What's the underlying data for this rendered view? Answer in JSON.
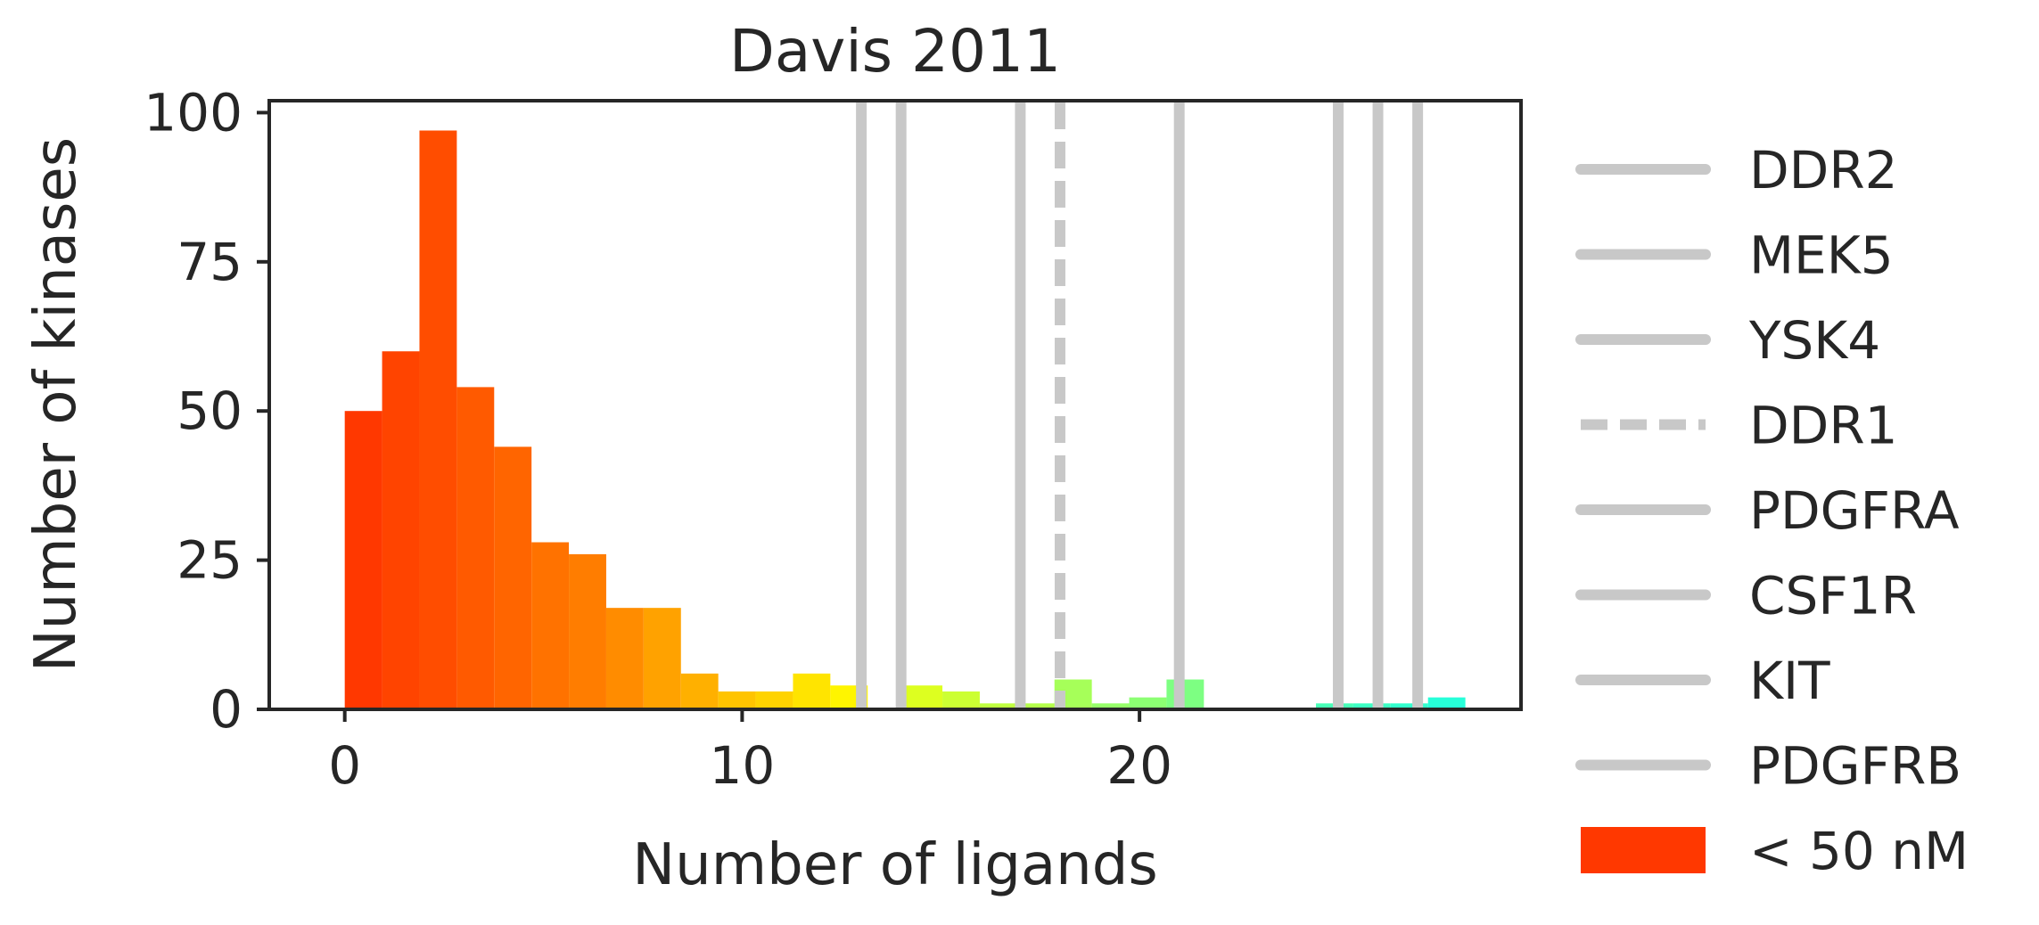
{
  "chart_data": {
    "type": "bar",
    "title": "Davis 2011",
    "xlabel": "Number of ligands",
    "ylabel": "Number of kinases",
    "xlim": [
      -1.9,
      29.6
    ],
    "ylim": [
      0,
      102
    ],
    "xticks": [
      0,
      10,
      20
    ],
    "yticks": [
      0,
      25,
      50,
      75,
      100
    ],
    "bin_width": 0.94,
    "bins": [
      {
        "x": 0.0,
        "value": 50,
        "color": "#ff3800"
      },
      {
        "x": 0.94,
        "value": 60,
        "color": "#ff4400"
      },
      {
        "x": 1.88,
        "value": 97,
        "color": "#ff4d00"
      },
      {
        "x": 2.82,
        "value": 54,
        "color": "#ff5a00"
      },
      {
        "x": 3.76,
        "value": 44,
        "color": "#ff6500"
      },
      {
        "x": 4.7,
        "value": 28,
        "color": "#ff7200"
      },
      {
        "x": 5.64,
        "value": 26,
        "color": "#ff7d00"
      },
      {
        "x": 6.58,
        "value": 17,
        "color": "#ff8c00"
      },
      {
        "x": 7.52,
        "value": 17,
        "color": "#ffa200"
      },
      {
        "x": 8.46,
        "value": 6,
        "color": "#ffb000"
      },
      {
        "x": 9.4,
        "value": 3,
        "color": "#ffc400"
      },
      {
        "x": 10.34,
        "value": 3,
        "color": "#ffd300"
      },
      {
        "x": 11.28,
        "value": 6,
        "color": "#ffe400"
      },
      {
        "x": 12.22,
        "value": 4,
        "color": "#fff500"
      },
      {
        "x": 14.1,
        "value": 4,
        "color": "#ddff20"
      },
      {
        "x": 15.04,
        "value": 3,
        "color": "#ccff33"
      },
      {
        "x": 15.98,
        "value": 1,
        "color": "#bfff40"
      },
      {
        "x": 16.92,
        "value": 1,
        "color": "#b4ff4b"
      },
      {
        "x": 17.86,
        "value": 5,
        "color": "#a6ff59"
      },
      {
        "x": 18.8,
        "value": 1,
        "color": "#96ff69"
      },
      {
        "x": 19.74,
        "value": 2,
        "color": "#8cff73"
      },
      {
        "x": 20.68,
        "value": 5,
        "color": "#7dff82"
      },
      {
        "x": 24.44,
        "value": 1,
        "color": "#48ffb7"
      },
      {
        "x": 25.38,
        "value": 1,
        "color": "#3cffc3"
      },
      {
        "x": 26.32,
        "value": 1,
        "color": "#32ffcd"
      },
      {
        "x": 27.26,
        "value": 2,
        "color": "#26ffd9"
      }
    ],
    "reference_lines": [
      {
        "name": "DDR2",
        "x": 13,
        "style": "solid"
      },
      {
        "name": "MEK5",
        "x": 14,
        "style": "solid"
      },
      {
        "name": "YSK4",
        "x": 17,
        "style": "solid"
      },
      {
        "name": "DDR1",
        "x": 18,
        "style": "dashed"
      },
      {
        "name": "PDGFRA",
        "x": 21,
        "style": "solid"
      },
      {
        "name": "CSF1R",
        "x": 25,
        "style": "solid"
      },
      {
        "name": "KIT",
        "x": 26,
        "style": "solid"
      },
      {
        "name": "PDGFRB",
        "x": 27,
        "style": "solid"
      }
    ],
    "reference_line_color": "#c8c8c8",
    "legend": {
      "placement": "right-outside",
      "entries": [
        {
          "label": "DDR2",
          "kind": "line",
          "style": "solid"
        },
        {
          "label": "MEK5",
          "kind": "line",
          "style": "solid"
        },
        {
          "label": "YSK4",
          "kind": "line",
          "style": "solid"
        },
        {
          "label": "DDR1",
          "kind": "line",
          "style": "dashed"
        },
        {
          "label": "PDGFRA",
          "kind": "line",
          "style": "solid"
        },
        {
          "label": "CSF1R",
          "kind": "line",
          "style": "solid"
        },
        {
          "label": "KIT",
          "kind": "line",
          "style": "solid"
        },
        {
          "label": "PDGFRB",
          "kind": "line",
          "style": "solid"
        },
        {
          "label": "< 50 nM",
          "kind": "patch",
          "color": "#ff3800"
        }
      ]
    },
    "grid": false
  }
}
